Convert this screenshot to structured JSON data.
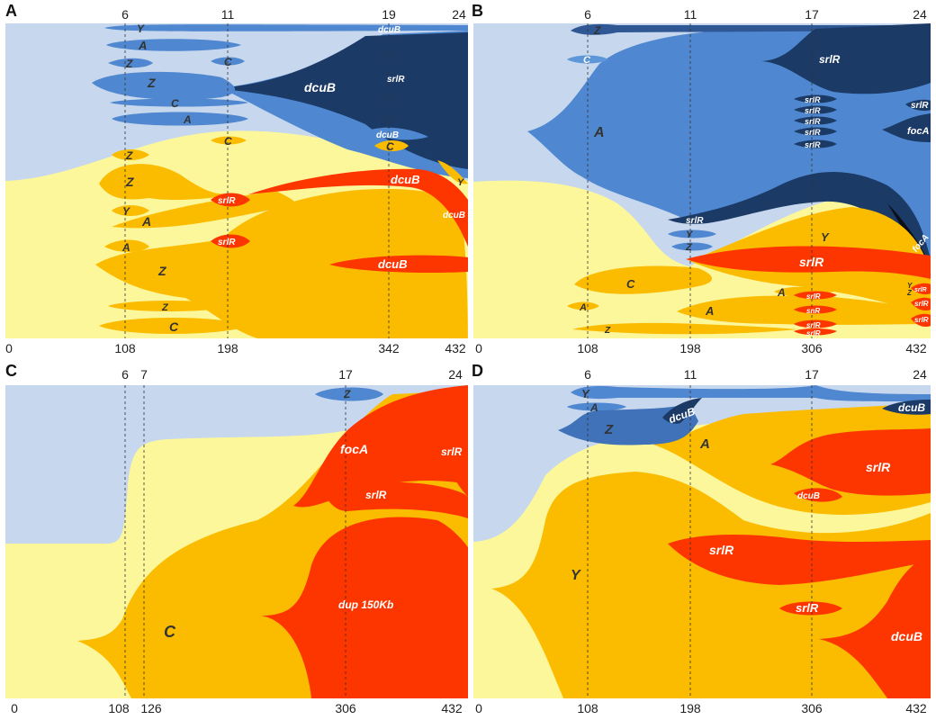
{
  "colors": {
    "bg_blue": "#c6d7ee",
    "bg_yellow": "#fdf79b",
    "mid_blue": "#4f88d0",
    "steel_blue": "#3f72b8",
    "dark_blue": "#1b3a66",
    "orange": "#fbbc00",
    "red": "#fd3600"
  },
  "panels": [
    {
      "id": "A",
      "letter": "A",
      "top_ticks": [
        "6",
        "11",
        "19",
        "24"
      ],
      "bottom_ticks": [
        "0",
        "108",
        "198",
        "342",
        "432"
      ],
      "labels": {
        "y1": "Y",
        "a1": "A",
        "z1": "Z",
        "c1": "C",
        "z2": "Z",
        "c2": "C",
        "a2": "A",
        "dcub_blue": "dcuB",
        "srlr_blue": "srlR",
        "dcub_top": "dcuB",
        "dcub_small": "dcuB",
        "z3": "Z",
        "c3": "C",
        "c4": "C",
        "z4": "Z",
        "y2": "Y",
        "a3": "A",
        "a4": "A",
        "z5": "Z",
        "z6": "Z",
        "c5": "C",
        "srlr1": "srlR",
        "srlr2": "srlR",
        "dcub_red1": "dcuB",
        "dcub_red2": "dcuB",
        "dcub_red3": "dcuB",
        "y3": "Y"
      }
    },
    {
      "id": "B",
      "letter": "B",
      "top_ticks": [
        "6",
        "11",
        "17",
        "24"
      ],
      "bottom_ticks": [
        "0",
        "108",
        "198",
        "306",
        "432"
      ],
      "labels": {
        "z1": "Z",
        "c1": "C",
        "a_big": "A",
        "srlr_top": "srlR",
        "srlr_s1": "srlR",
        "srlr_s2": "srlR",
        "srlr_s3": "srlR",
        "srlr_s4": "srlR",
        "srlr_s5": "srlR",
        "srlr_right": "srlR",
        "foca1": "focA",
        "srlr_dark": "srlR",
        "foca2": "focA",
        "y1": "Y",
        "z2": "Z",
        "y2": "Y",
        "srlr_red": "srlR",
        "c2": "C",
        "a2": "A",
        "a3": "A",
        "a4": "A",
        "z3": "Z",
        "srlr_r1": "srlR",
        "snr": "snR",
        "srlr_r2": "srlR",
        "srlr_r3": "srlR",
        "srlr_r4": "srlR",
        "srlr_r5": "srlR",
        "y3": "Y",
        "z4": "Z",
        "srlr_r6": "srlR"
      }
    },
    {
      "id": "C",
      "letter": "C",
      "top_ticks": [
        "6",
        "7",
        "17",
        "24"
      ],
      "bottom_ticks": [
        "0",
        "108",
        "126",
        "306",
        "432"
      ],
      "labels": {
        "z1": "Z",
        "foca": "focA",
        "srlr1": "srlR",
        "srlr2": "srlR",
        "dup": "dup 150Kb",
        "c_big": "C"
      }
    },
    {
      "id": "D",
      "letter": "D",
      "top_ticks": [
        "6",
        "11",
        "17",
        "24"
      ],
      "bottom_ticks": [
        "0",
        "108",
        "198",
        "306",
        "432"
      ],
      "labels": {
        "y1": "Y",
        "a1": "A",
        "z1": "Z",
        "dcub1": "dcuB",
        "dcub2": "dcuB",
        "a2": "A",
        "srlr1": "srlR",
        "dcub3": "dcuB",
        "srlr2": "srlR",
        "srlr3": "srlR",
        "y_big": "Y",
        "dcub4": "dcuB"
      }
    }
  ]
}
